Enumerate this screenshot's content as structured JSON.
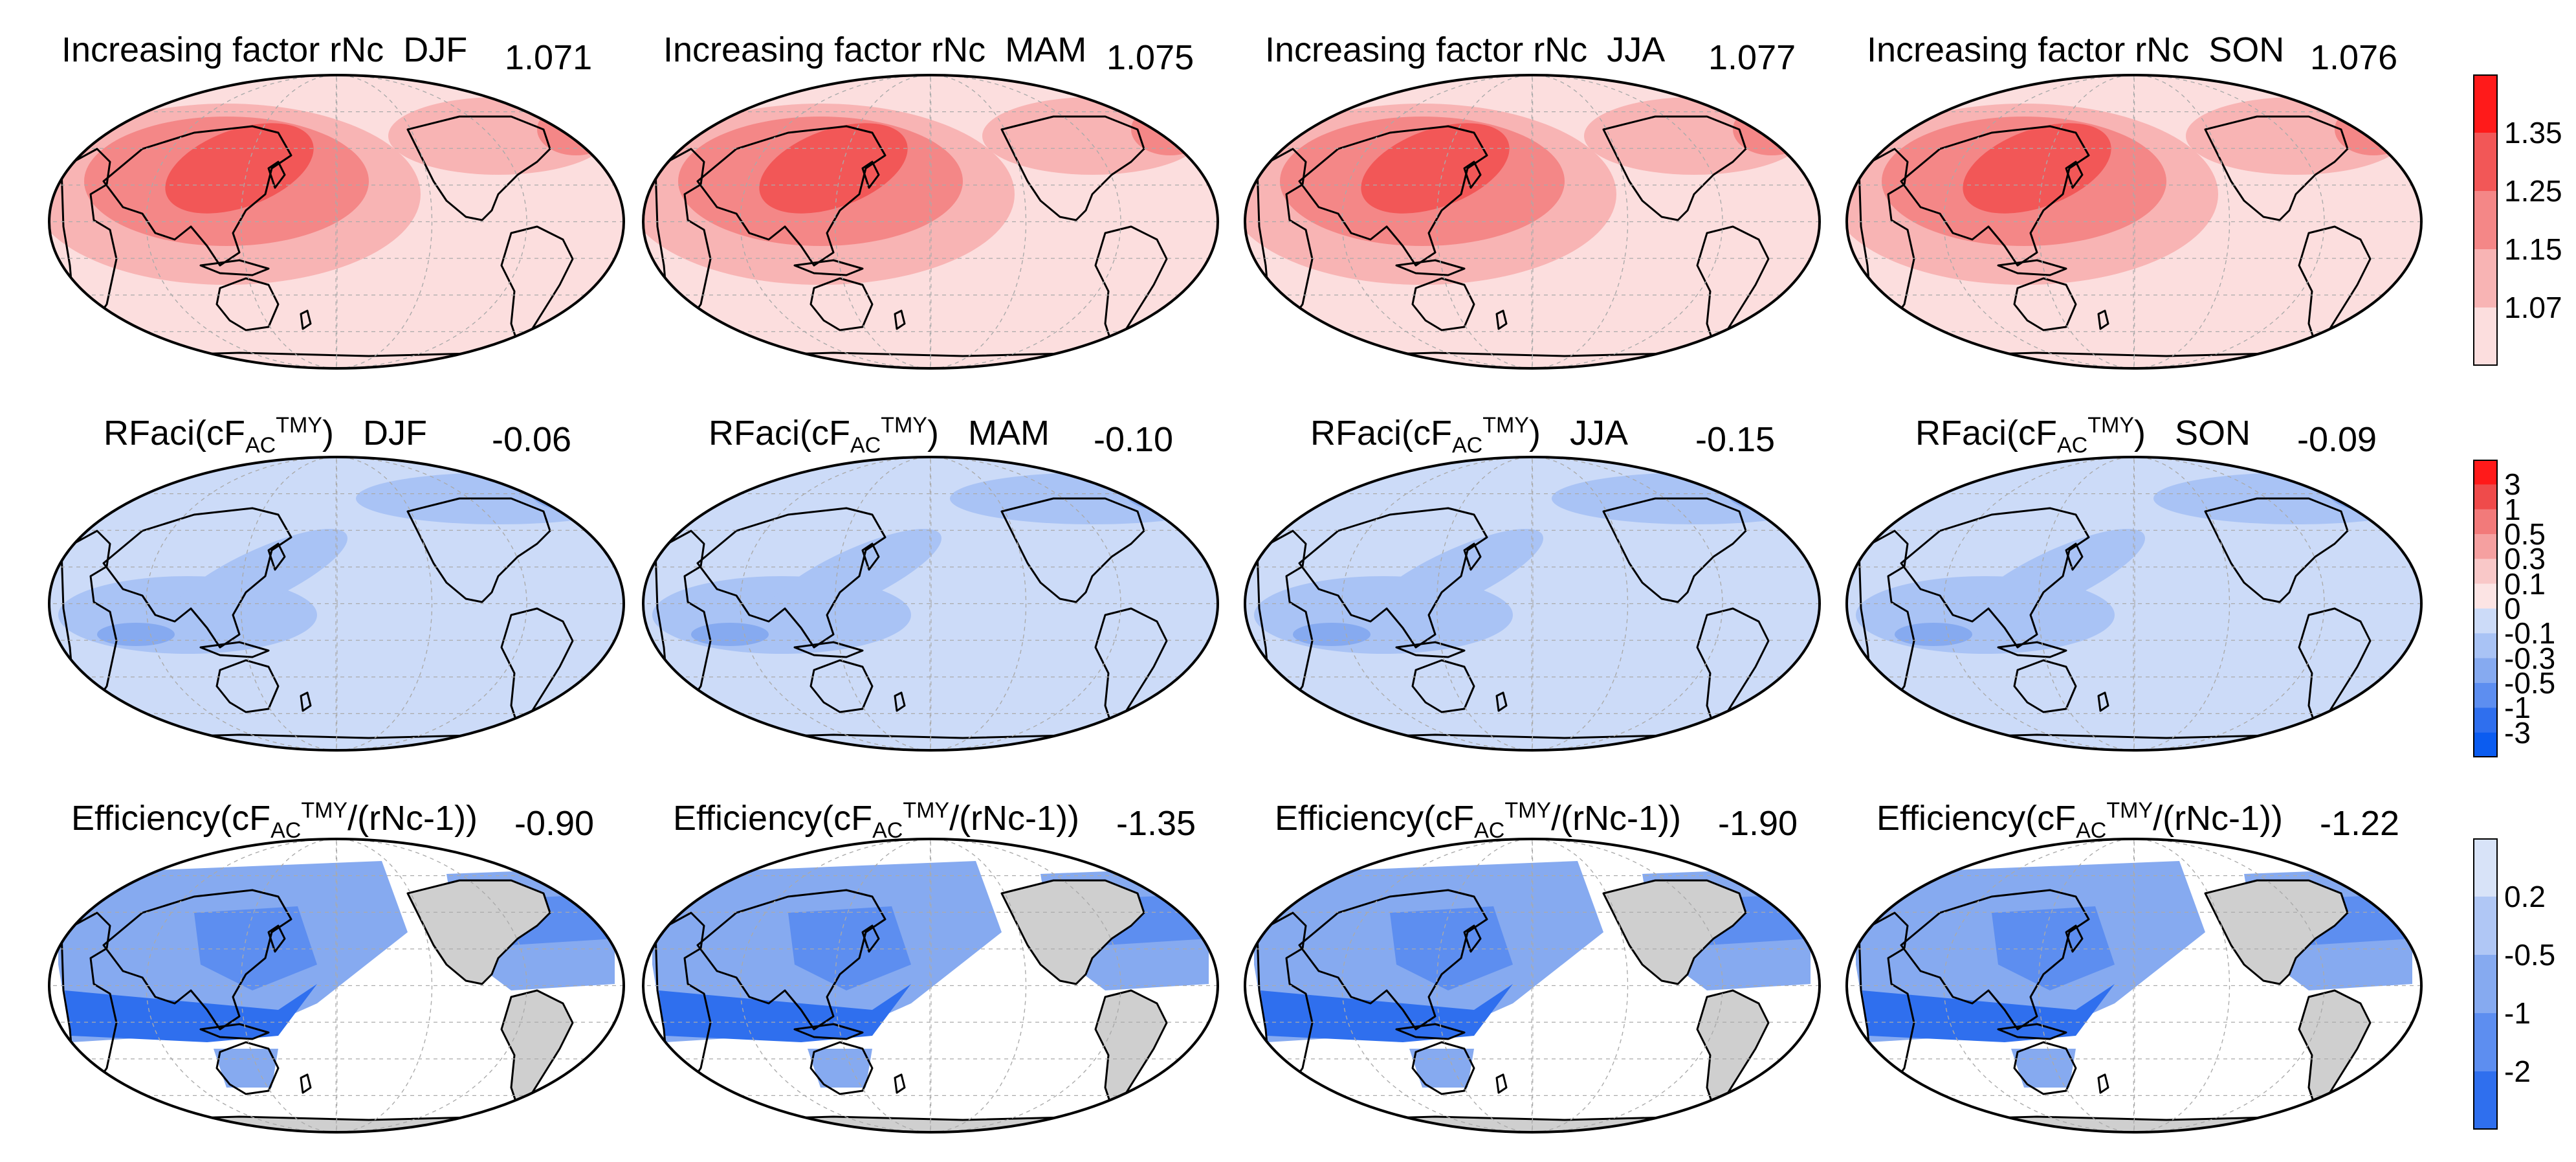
{
  "rows": [
    {
      "title_prefix": "Increasing factor rNc",
      "panels": [
        {
          "season": "DJF",
          "value": "1.071"
        },
        {
          "season": "MAM",
          "value": "1.075"
        },
        {
          "season": "JJA",
          "value": "1.077"
        },
        {
          "season": "SON",
          "value": "1.076"
        }
      ],
      "colorbar": {
        "ticks": [
          "1.35",
          "1.25",
          "1.15",
          "1.07"
        ],
        "colors": [
          "#ff1a1a",
          "#f25757",
          "#f48787",
          "#f8b4b4",
          "#fcdede"
        ]
      }
    },
    {
      "title_main": "RFaci(cF",
      "title_sub": "AC",
      "title_sup": "TMY",
      "title_close": ")",
      "panels": [
        {
          "season": "DJF",
          "value": "-0.06"
        },
        {
          "season": "MAM",
          "value": "-0.10"
        },
        {
          "season": "JJA",
          "value": "-0.15"
        },
        {
          "season": "SON",
          "value": "-0.09"
        }
      ],
      "colorbar": {
        "ticks": [
          "3",
          "1",
          "0.5",
          "0.3",
          "0.1",
          "0",
          "-0.1",
          "-0.3",
          "-0.5",
          "-1",
          "-3"
        ],
        "colors": [
          "#ff1a1a",
          "#ef4b4b",
          "#f27a7a",
          "#f5a0a0",
          "#f9c8c8",
          "#fce4e4",
          "#ccdbf8",
          "#a9c3f5",
          "#86aaf0",
          "#5d8ef0",
          "#2f6fee",
          "#0b5cf0"
        ]
      }
    },
    {
      "title_main": "Efficiency(cF",
      "title_sub": "AC",
      "title_sup": "TMY",
      "title_close": "/(rNc-1))",
      "panels": [
        {
          "value": "-0.90"
        },
        {
          "value": "-1.35"
        },
        {
          "value": "-1.90"
        },
        {
          "value": "-1.22"
        }
      ],
      "colorbar": {
        "ticks": [
          "0.2",
          "-0.5",
          "-1",
          "-2"
        ],
        "colors": [
          "#d8e3f8",
          "#b0c7f5",
          "#86aaf0",
          "#5d8ef0",
          "#2f6fee"
        ]
      }
    }
  ]
}
